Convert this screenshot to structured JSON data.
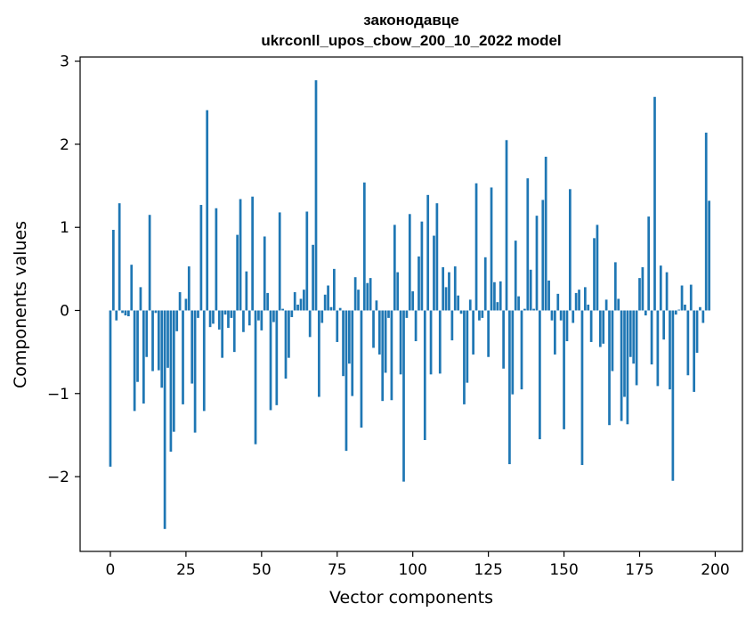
{
  "chart_data": {
    "type": "bar",
    "title": "законодавце",
    "subtitle": "ukrconll_upos_cbow_200_10_2022 model",
    "xlabel": "Vector components",
    "ylabel": "Components values",
    "xlim": [
      -10,
      209
    ],
    "ylim": [
      -2.9,
      3.05
    ],
    "x_ticks": [
      0,
      25,
      50,
      75,
      100,
      125,
      150,
      175,
      200
    ],
    "y_ticks": [
      -2,
      -1,
      0,
      1,
      2,
      3
    ],
    "x_tick_labels": [
      "0",
      "25",
      "50",
      "75",
      "100",
      "125",
      "150",
      "175",
      "200"
    ],
    "y_tick_labels": [
      "−2",
      "−1",
      "0",
      "1",
      "2",
      "3"
    ],
    "bar_color": "#1f77b4",
    "grid": false,
    "legend": "none",
    "values": [
      -1.88,
      0.97,
      -0.12,
      1.29,
      -0.03,
      -0.06,
      -0.07,
      0.55,
      -1.21,
      -0.86,
      0.28,
      -1.12,
      -0.56,
      1.15,
      -0.73,
      -0.03,
      -0.72,
      -0.93,
      -2.63,
      -0.69,
      -1.7,
      -1.46,
      -0.25,
      0.22,
      -1.13,
      0.14,
      0.53,
      -0.88,
      -1.47,
      -0.09,
      1.27,
      -1.21,
      2.41,
      -0.2,
      -0.16,
      1.23,
      -0.23,
      -0.57,
      -0.05,
      -0.21,
      -0.09,
      -0.5,
      0.91,
      1.34,
      -0.26,
      0.47,
      -0.18,
      1.37,
      -1.61,
      -0.12,
      -0.24,
      0.89,
      0.21,
      -1.2,
      -0.14,
      -1.14,
      1.18,
      0.02,
      -0.82,
      -0.57,
      -0.08,
      0.22,
      0.07,
      0.14,
      0.25,
      1.19,
      -0.32,
      0.79,
      2.77,
      -1.04,
      -0.15,
      0.19,
      0.3,
      0.04,
      0.5,
      -0.38,
      0.03,
      -0.79,
      -1.69,
      -0.64,
      -1.03,
      0.4,
      0.25,
      -1.41,
      1.54,
      0.33,
      0.39,
      -0.45,
      0.12,
      -0.53,
      -1.09,
      -0.75,
      -0.09,
      -1.08,
      1.03,
      0.46,
      -0.77,
      -2.06,
      -0.09,
      1.16,
      0.23,
      -0.37,
      0.65,
      1.07,
      -1.56,
      1.39,
      -0.77,
      0.9,
      1.29,
      -0.76,
      0.52,
      0.28,
      0.46,
      -0.36,
      0.53,
      0.18,
      -0.04,
      -1.13,
      -0.87,
      0.13,
      -0.53,
      1.53,
      -0.12,
      -0.09,
      0.64,
      -0.56,
      1.48,
      0.34,
      0.1,
      0.35,
      -0.7,
      2.05,
      -1.85,
      -1.01,
      0.84,
      0.17,
      -0.95,
      0.02,
      1.59,
      0.49,
      0.02,
      1.14,
      -1.55,
      1.33,
      1.85,
      0.36,
      -0.12,
      -0.53,
      0.2,
      -0.12,
      -1.43,
      -0.37,
      1.46,
      -0.15,
      0.21,
      0.25,
      -1.86,
      0.28,
      0.07,
      -0.38,
      0.87,
      1.03,
      -0.44,
      -0.4,
      0.13,
      -1.38,
      -0.73,
      0.58,
      0.14,
      -1.33,
      -1.04,
      -1.37,
      -0.56,
      -0.64,
      -0.9,
      0.39,
      0.52,
      -0.06,
      1.13,
      -0.65,
      2.57,
      -0.91,
      0.54,
      -0.35,
      0.46,
      -0.95,
      -2.05,
      -0.05,
      0.01,
      0.3,
      0.07,
      -0.78,
      0.31,
      -0.98,
      -0.51,
      0.04,
      -0.15,
      2.14,
      1.32
    ]
  }
}
